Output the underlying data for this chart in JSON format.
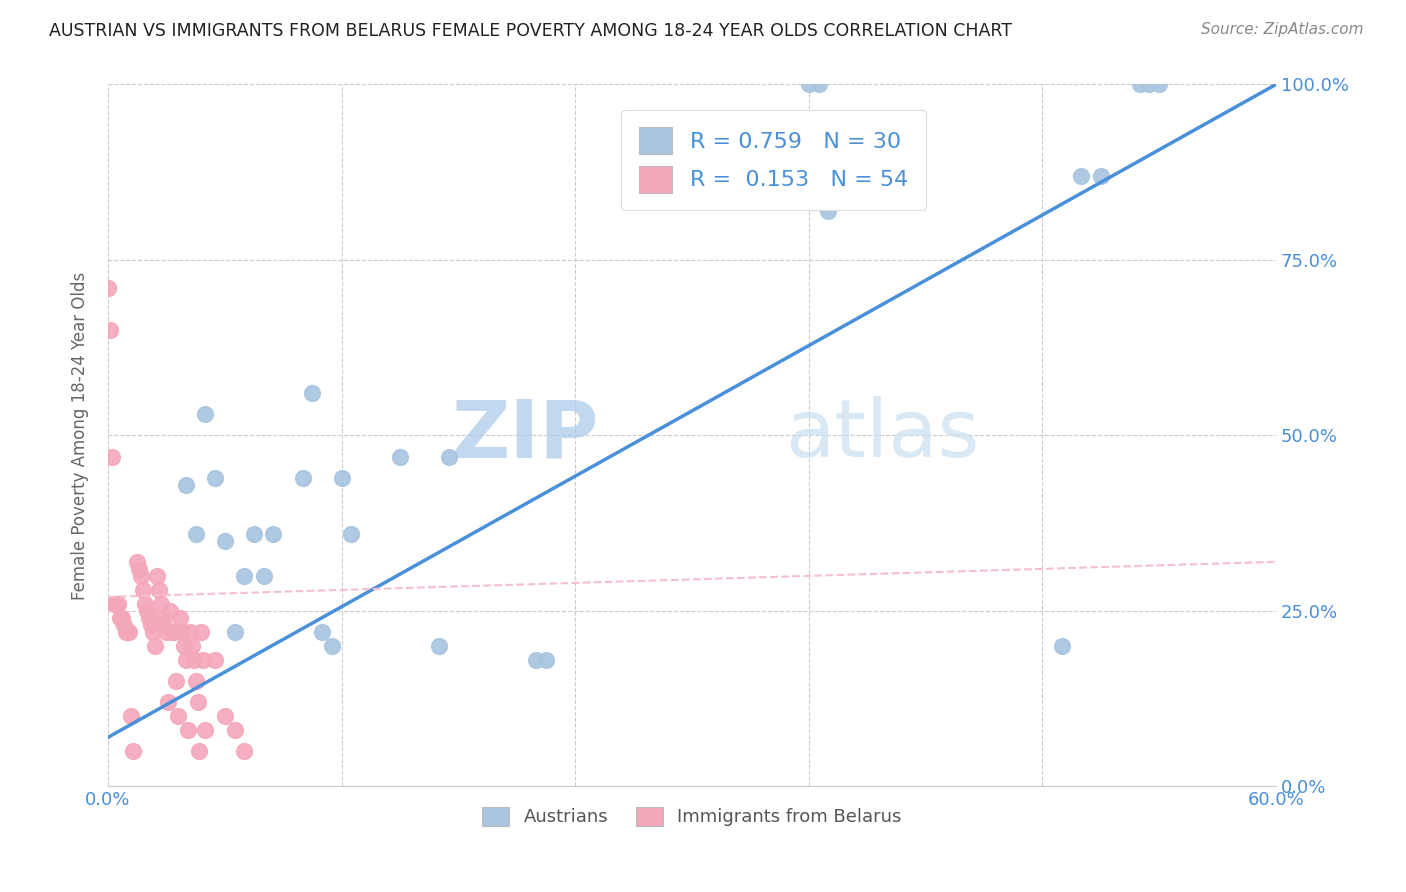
{
  "title": "AUSTRIAN VS IMMIGRANTS FROM BELARUS FEMALE POVERTY AMONG 18-24 YEAR OLDS CORRELATION CHART",
  "source": "Source: ZipAtlas.com",
  "ylabel": "Female Poverty Among 18-24 Year Olds",
  "xlabel_austrians": "Austrians",
  "xlabel_immigrants": "Immigrants from Belarus",
  "xlim": [
    0.0,
    0.6
  ],
  "ylim": [
    0.0,
    1.0
  ],
  "xticks": [
    0.0,
    0.12,
    0.24,
    0.36,
    0.48,
    0.6
  ],
  "xtick_labels": [
    "0.0%",
    "",
    "",
    "",
    "",
    "60.0%"
  ],
  "ytick_labels_right": [
    "0.0%",
    "25.0%",
    "50.0%",
    "75.0%",
    "100.0%"
  ],
  "r_austrians": 0.759,
  "n_austrians": 30,
  "r_immigrants": 0.153,
  "n_immigrants": 54,
  "color_austrians": "#a8c4e0",
  "color_immigrants": "#f4a7b9",
  "color_blue": "#4a90d9",
  "color_pink": "#f4c0cc",
  "watermark_zip": "ZIP",
  "watermark_atlas": "atlas",
  "austrians_x": [
    0.36,
    0.365,
    0.37,
    0.49,
    0.5,
    0.51,
    0.53,
    0.535,
    0.54,
    0.04,
    0.045,
    0.05,
    0.055,
    0.06,
    0.065,
    0.07,
    0.075,
    0.08,
    0.085,
    0.1,
    0.105,
    0.11,
    0.115,
    0.12,
    0.125,
    0.15,
    0.17,
    0.175,
    0.22,
    0.225
  ],
  "austrians_y": [
    1.0,
    1.0,
    0.82,
    0.2,
    0.87,
    0.87,
    1.0,
    1.0,
    1.0,
    0.43,
    0.36,
    0.53,
    0.44,
    0.35,
    0.22,
    0.3,
    0.36,
    0.3,
    0.36,
    0.44,
    0.56,
    0.22,
    0.2,
    0.44,
    0.36,
    0.47,
    0.2,
    0.47,
    0.18,
    0.18
  ],
  "immigrants_x": [
    0.0,
    0.001,
    0.002,
    0.003,
    0.004,
    0.005,
    0.006,
    0.007,
    0.008,
    0.009,
    0.01,
    0.011,
    0.012,
    0.013,
    0.015,
    0.016,
    0.017,
    0.018,
    0.019,
    0.02,
    0.021,
    0.022,
    0.023,
    0.024,
    0.025,
    0.026,
    0.027,
    0.028,
    0.029,
    0.03,
    0.031,
    0.032,
    0.033,
    0.034,
    0.035,
    0.036,
    0.037,
    0.038,
    0.039,
    0.04,
    0.041,
    0.042,
    0.043,
    0.044,
    0.045,
    0.046,
    0.047,
    0.048,
    0.049,
    0.05,
    0.055,
    0.06,
    0.065,
    0.07
  ],
  "immigrants_y": [
    0.71,
    0.65,
    0.47,
    0.26,
    0.26,
    0.26,
    0.24,
    0.24,
    0.23,
    0.22,
    0.22,
    0.22,
    0.1,
    0.05,
    0.32,
    0.31,
    0.3,
    0.28,
    0.26,
    0.25,
    0.24,
    0.23,
    0.22,
    0.2,
    0.3,
    0.28,
    0.26,
    0.24,
    0.23,
    0.22,
    0.12,
    0.25,
    0.22,
    0.22,
    0.15,
    0.1,
    0.24,
    0.22,
    0.2,
    0.18,
    0.08,
    0.22,
    0.2,
    0.18,
    0.15,
    0.12,
    0.05,
    0.22,
    0.18,
    0.08,
    0.18,
    0.1,
    0.08,
    0.05
  ],
  "regression_austrians_x0": 0.0,
  "regression_austrians_y0": 0.07,
  "regression_austrians_x1": 0.6,
  "regression_austrians_y1": 1.0,
  "regression_immigrants_x0": 0.0,
  "regression_immigrants_y0": 0.27,
  "regression_immigrants_x1": 0.6,
  "regression_immigrants_y1": 0.32
}
